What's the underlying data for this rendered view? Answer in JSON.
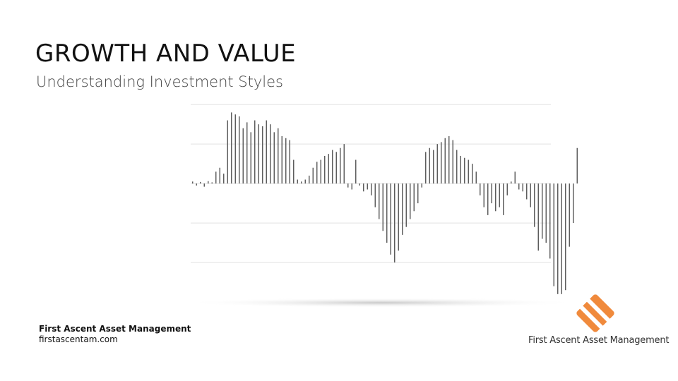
{
  "header": {
    "title": "GROWTH AND VALUE",
    "subtitle": "Understanding Investment Styles"
  },
  "footer": {
    "company": "First  Ascent Asset Management",
    "url": "firstascentam.com"
  },
  "logo": {
    "text": "First Ascent Asset Management"
  },
  "chart_data": {
    "type": "bar",
    "color": "#555555",
    "grid": true,
    "ylim": [
      -3,
      2.2
    ],
    "yticks": [
      -2,
      -1,
      0,
      1,
      2
    ],
    "values": [
      0.05,
      -0.05,
      0.04,
      -0.08,
      0.06,
      0.03,
      0.3,
      0.4,
      0.25,
      1.6,
      1.8,
      1.75,
      1.7,
      1.4,
      1.55,
      1.3,
      1.6,
      1.5,
      1.45,
      1.6,
      1.5,
      1.3,
      1.4,
      1.2,
      1.15,
      1.1,
      0.6,
      0.1,
      0.05,
      0.1,
      0.2,
      0.4,
      0.55,
      0.6,
      0.7,
      0.75,
      0.85,
      0.8,
      0.9,
      1.0,
      -0.1,
      -0.15,
      0.6,
      -0.05,
      -0.2,
      -0.15,
      -0.3,
      -0.6,
      -0.9,
      -1.2,
      -1.5,
      -1.8,
      -2.0,
      -1.7,
      -1.3,
      -1.1,
      -0.9,
      -0.7,
      -0.5,
      -0.1,
      0.8,
      0.9,
      0.85,
      1.0,
      1.05,
      1.15,
      1.2,
      1.1,
      0.85,
      0.7,
      0.65,
      0.6,
      0.5,
      0.3,
      -0.3,
      -0.6,
      -0.8,
      -0.5,
      -0.7,
      -0.6,
      -0.8,
      -0.3,
      0.05,
      0.3,
      -0.15,
      -0.2,
      -0.4,
      -0.6,
      -1.1,
      -1.7,
      -1.4,
      -1.5,
      -1.9,
      -2.6,
      -2.8,
      -2.8,
      -2.7,
      -1.6,
      -1.0,
      0.9
    ]
  }
}
